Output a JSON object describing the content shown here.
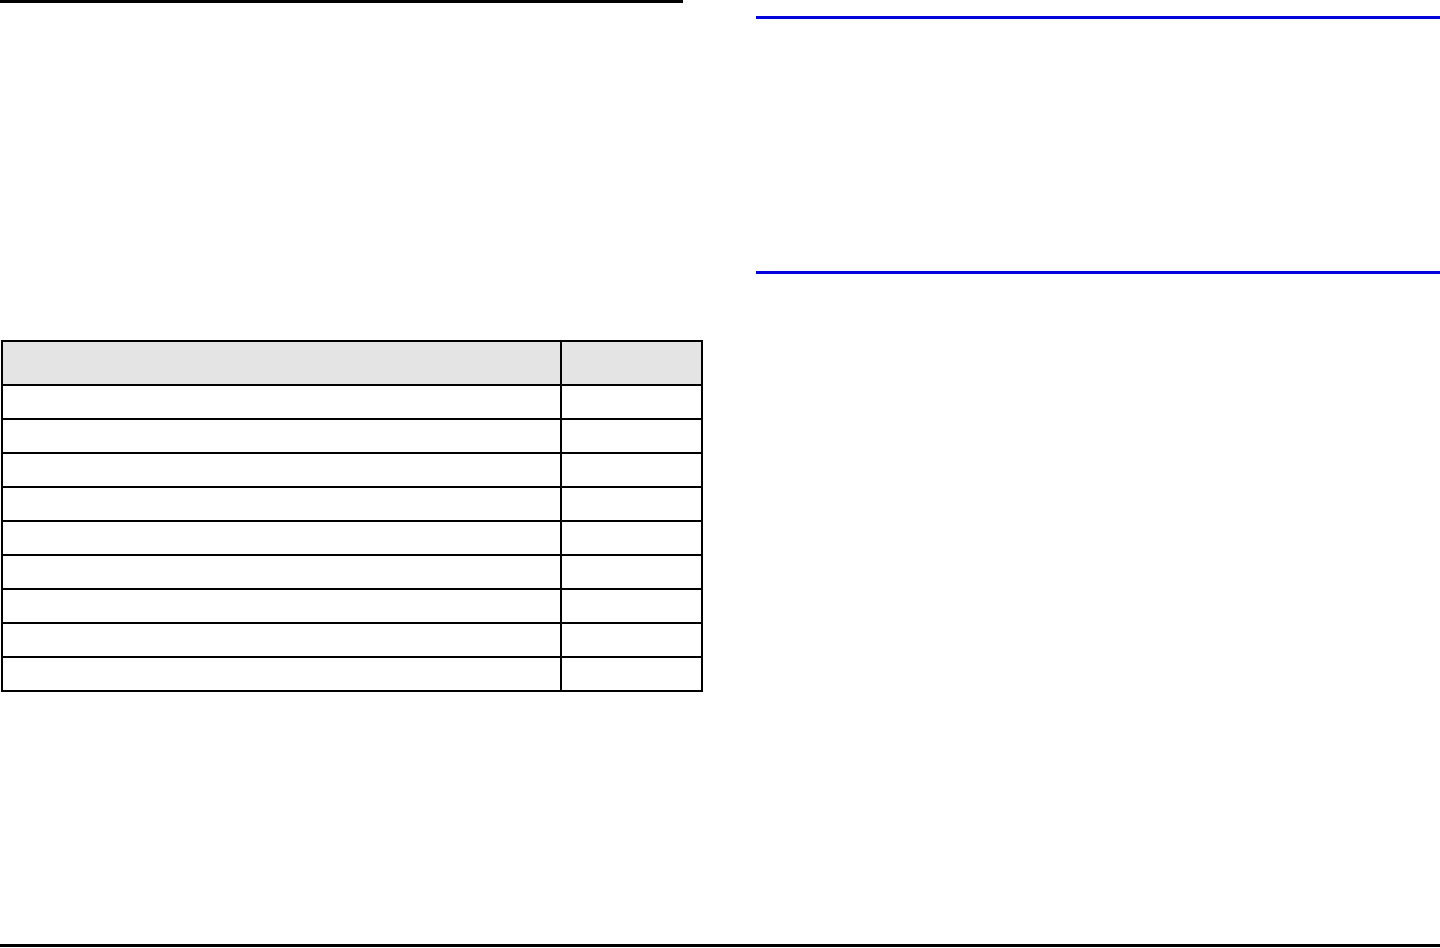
{
  "page": {
    "background_color": "#ffffff",
    "left_section": {
      "header_rule_top": {
        "color": "#000000"
      },
      "header_rule_bottom": {
        "color": "#000000"
      },
      "table": {
        "border_color": "#000000",
        "header_fill_color": "#e4e4e4",
        "columns": [
          {
            "name": "main",
            "label": ""
          },
          {
            "name": "value",
            "label": ""
          }
        ],
        "rows": [
          [
            "",
            ""
          ],
          [
            "",
            ""
          ],
          [
            "",
            ""
          ],
          [
            "",
            ""
          ],
          [
            "",
            ""
          ],
          [
            "",
            ""
          ],
          [
            "",
            ""
          ],
          [
            "",
            ""
          ],
          [
            "",
            ""
          ]
        ]
      }
    },
    "right_section": {
      "rule_top": {
        "color": "#0000dd"
      },
      "rule_middle": {
        "color": "#0000dd"
      }
    },
    "footer_rule": {
      "color": "#000000"
    }
  }
}
